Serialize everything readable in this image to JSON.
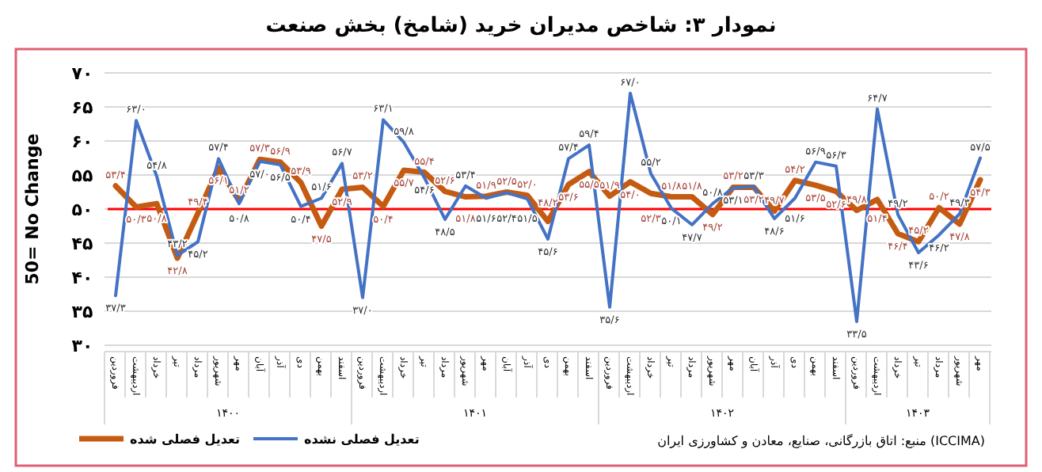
{
  "chart_data": {
    "type": "line",
    "title": "نمودار ۳: شاخص مدیران خرید (شامخ) بخش صنعت",
    "ylabel": "50= No Change",
    "categories": [
      "فروردین",
      "اردیبهشت",
      "خرداد",
      "تیر",
      "مرداد",
      "شهریور",
      "مهر",
      "آبان",
      "آذر",
      "دی",
      "بهمن",
      "اسفند",
      "فروردین",
      "اردیبهشت",
      "خرداد",
      "تیر",
      "مرداد",
      "شهریور",
      "مهر",
      "آبان",
      "آذر",
      "دی",
      "بهمن",
      "اسفند",
      "فروردین",
      "اردیبهشت",
      "خرداد",
      "تیر",
      "مرداد",
      "شهریور",
      "مهر",
      "آبان",
      "آذر",
      "دی",
      "بهمن",
      "اسفند",
      "فروردین",
      "اردیبهشت",
      "خرداد",
      "تیر",
      "مرداد",
      "شهریور",
      "مهر"
    ],
    "ylim": [
      30,
      70
    ],
    "yticks": [
      {
        "value": 30,
        "label": "۳۰"
      },
      {
        "value": 35,
        "label": "۳۵"
      },
      {
        "value": 40,
        "label": "۴۰"
      },
      {
        "value": 45,
        "label": "۴۵"
      },
      {
        "value": 50,
        "label": "۵۰"
      },
      {
        "value": 55,
        "label": "۵۵"
      },
      {
        "value": 60,
        "label": "۶۰"
      },
      {
        "value": 65,
        "label": "۶۵"
      },
      {
        "value": 70,
        "label": "۷۰"
      }
    ],
    "grid": "y",
    "legend": "bottom",
    "marker": "none",
    "line_style": "solid",
    "ref_lines": [
      {
        "axis": "y",
        "value": 50,
        "color": "#ff0000"
      }
    ],
    "series": [
      {
        "name": "تعدیل فصلی شده",
        "color": "#c55a11",
        "values": [
          53.4,
          50.3,
          50.8,
          42.8,
          49.4,
          56.1,
          51.2,
          57.3,
          56.9,
          53.9,
          47.5,
          52.9,
          53.2,
          50.4,
          55.7,
          55.4,
          52.6,
          51.8,
          51.9,
          52.5,
          52.0,
          48.2,
          53.6,
          55.5,
          51.9,
          54.0,
          52.3,
          51.8,
          51.8,
          49.2,
          53.2,
          53.2,
          49.7,
          54.2,
          53.5,
          52.6,
          49.8,
          51.4,
          46.4,
          45.2,
          50.2,
          47.8,
          54.3
        ],
        "value_labels": [
          "۵۳/۴",
          "۵۰/۳",
          "۵۰/۸",
          "۴۲/۸",
          "۴۹/۴",
          "۵۶/۱",
          "۵۱/۲",
          "۵۷/۳",
          "۵۶/۹",
          "۵۳/۹",
          "۴۷/۵",
          "۵۲/۹",
          "۵۳/۲",
          "۵۰/۴",
          "۵۵/۷",
          "۵۵/۴",
          "۵۲/۶",
          "۵۱/۸",
          "۵۱/۹",
          "۵۲/۵",
          "۵۲/۰",
          "۴۸/۲",
          "۵۳/۶",
          "۵۵/۵",
          "۵۱/۹",
          "۵۴/۰",
          "۵۲/۳",
          "۵۱/۸",
          "۵۱/۸",
          "۴۹/۲",
          "۵۳/۲",
          "۵۳/۲",
          "۴۹/۷",
          "۵۴/۲",
          "۵۳/۵",
          "۵۲/۶",
          "۴۹/۸",
          "۵۱/۴",
          "۴۶/۴",
          "۴۵/۲",
          "۵۰/۲",
          "۴۷/۸",
          "۵۴/۳"
        ]
      },
      {
        "name": "تعدیل فصلی نشده",
        "color": "#4472c4",
        "values": [
          37.3,
          63.0,
          54.8,
          43.2,
          45.2,
          57.4,
          50.8,
          57.0,
          56.5,
          50.4,
          51.6,
          56.7,
          37.0,
          63.1,
          59.8,
          54.6,
          48.5,
          53.4,
          51.6,
          52.4,
          51.5,
          45.6,
          57.4,
          59.4,
          35.6,
          67.0,
          55.2,
          50.1,
          47.7,
          50.8,
          53.1,
          53.3,
          48.6,
          51.6,
          56.9,
          56.3,
          33.5,
          64.7,
          49.2,
          43.6,
          46.2,
          49.3,
          57.5
        ],
        "value_labels": [
          "۳۷/۳",
          "۶۳/۰",
          "۵۴/۸",
          "۴۳/۲",
          "۴۵/۲",
          "۵۷/۴",
          "۵۰/۸",
          "۵۷/۰",
          "۵۶/۵",
          "۵۰/۴",
          "۵۱/۶",
          "۵۶/۷",
          "۳۷/۰",
          "۶۳/۱",
          "۵۹/۸",
          "۵۴/۶",
          "۴۸/۵",
          "۵۳/۴",
          "۵۱/۶",
          "۵۲/۴",
          "۵۱/۵",
          "۴۵/۶",
          "۵۷/۴",
          "۵۹/۴",
          "۳۵/۶",
          "۶۷/۰",
          "۵۵/۲",
          "۵۰/۱",
          "۴۷/۷",
          "۵۰/۸",
          "۵۳/۱",
          "۵۳/۳",
          "۴۸/۶",
          "۵۱/۶",
          "۵۶/۹",
          "۵۶/۳",
          "۳۳/۵",
          "۶۴/۷",
          "۴۹/۲",
          "۴۳/۶",
          "۴۶/۲",
          "۴۹/۳",
          "۵۷/۵"
        ]
      }
    ],
    "annotations": [
      "۱۴۰۰",
      "۱۴۰۱",
      "۱۴۰۲",
      "۱۴۰۳",
      "منبع: اتاق بازرگانی، صنایع، معادن و کشاورزی ایران (ICCIMA)"
    ]
  }
}
